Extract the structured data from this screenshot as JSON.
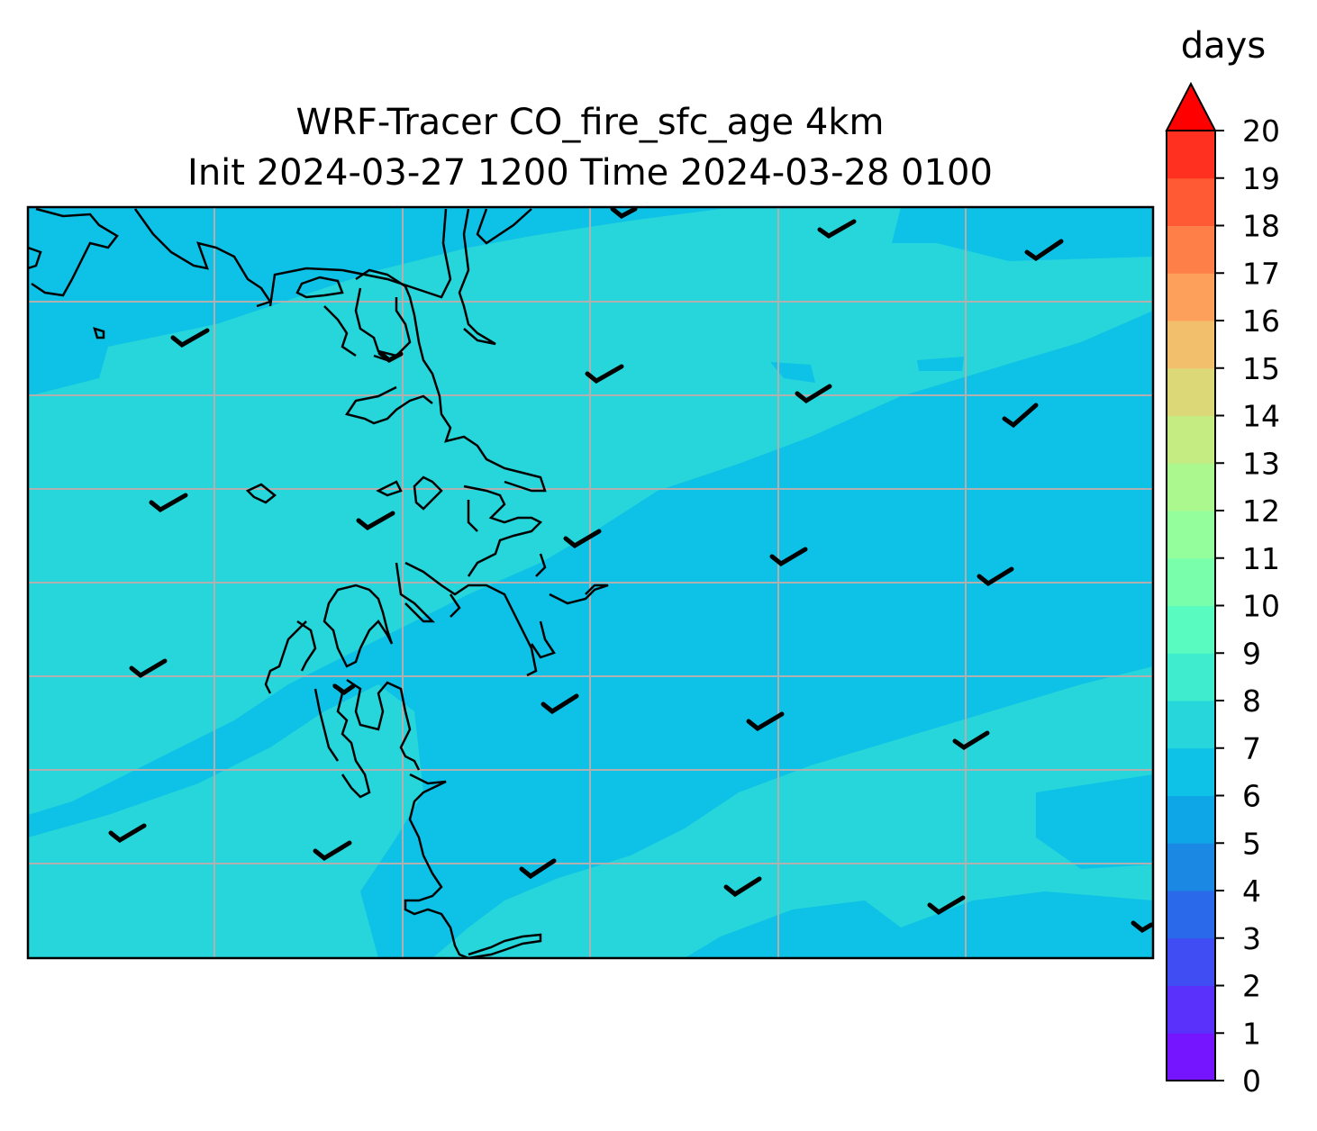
{
  "title": {
    "line1": "WRF-Tracer CO_fire_sfc_age 4km",
    "line2": "Init 2024-03-27 1200 Time 2024-03-28 0100"
  },
  "colorbar": {
    "units": "days",
    "ticks": [
      "0",
      "1",
      "2",
      "3",
      "4",
      "5",
      "6",
      "7",
      "8",
      "9",
      "10",
      "11",
      "12",
      "13",
      "14",
      "15",
      "16",
      "17",
      "18",
      "19",
      "20"
    ],
    "colors": [
      "#7514ff",
      "#5a31fb",
      "#3f4df3",
      "#2a69ea",
      "#1b88e3",
      "#0ea6e6",
      "#0ec1e6",
      "#26d6da",
      "#40ecce",
      "#5afbc0",
      "#79ffac",
      "#94fe9c",
      "#abf88f",
      "#c4ec83",
      "#dcd878",
      "#f2c06c",
      "#fda05c",
      "#ff7f48",
      "#ff5a33",
      "#ff3020",
      "#ff0a0a"
    ],
    "extend_color": "#ff0000"
  },
  "map": {
    "field_colors": {
      "range_5_6": "#0ec1e6",
      "range_6_7": "#26d6da"
    },
    "gridline_color": "#b0b0b0",
    "coastline_color": "#000000",
    "wind_barb_color": "#000000",
    "barb_count": 24
  }
}
